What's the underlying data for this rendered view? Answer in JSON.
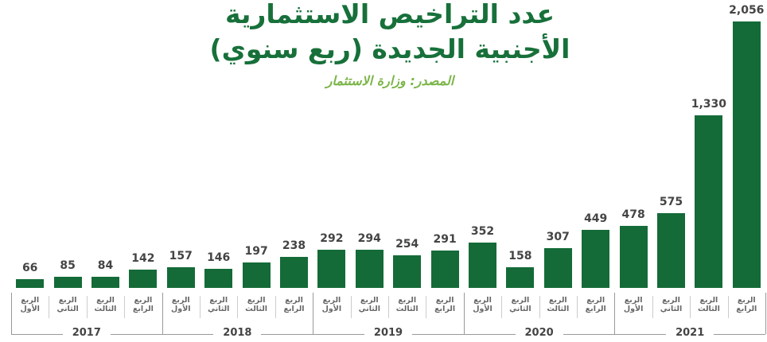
{
  "chart_data": {
    "type": "bar",
    "title": "عدد التراخيص الاستثمارية الأجنبية الجديدة (ربع سنوي)",
    "subtitle": "المصدر: وزارة الاستثمار",
    "color": "#146b38",
    "categories": [
      "الربع الأول",
      "الربع الثاني",
      "الربع الثالث",
      "الربع الرابع",
      "الربع الأول",
      "الربع الثاني",
      "الربع الثالث",
      "الربع الرابع",
      "الربع الأول",
      "الربع الثاني",
      "الربع الثالث",
      "الربع الرابع",
      "الربع الأول",
      "الربع الثاني",
      "الربع الثالث",
      "الربع الرابع",
      "الربع الأول",
      "الربع الثاني",
      "الربع الثالث",
      "الربع الرابع"
    ],
    "groups": [
      "2017",
      "2018",
      "2019",
      "2020",
      "2021"
    ],
    "values": [
      66,
      85,
      84,
      142,
      157,
      146,
      197,
      238,
      292,
      294,
      254,
      291,
      352,
      158,
      307,
      449,
      478,
      575,
      1330,
      2056
    ],
    "value_labels": [
      "66",
      "85",
      "84",
      "142",
      "157",
      "146",
      "197",
      "238",
      "292",
      "294",
      "254",
      "291",
      "352",
      "158",
      "307",
      "449",
      "478",
      "575",
      "1,330",
      "2,056"
    ]
  }
}
